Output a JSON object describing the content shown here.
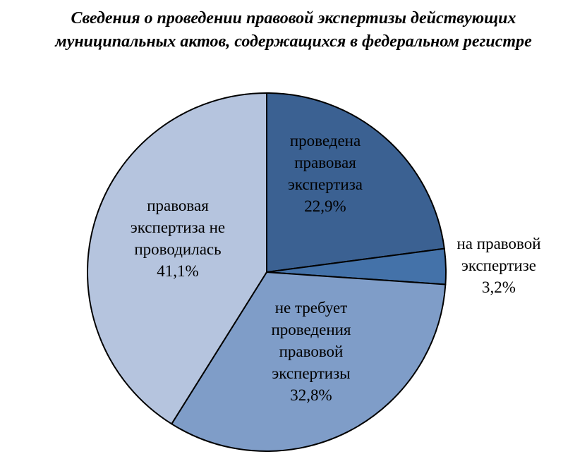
{
  "chart_data": {
    "type": "pie",
    "title_lines": [
      "Сведения о проведении правовой экспертизы действующих",
      "муниципальных актов, содержащихся в федеральном регистре"
    ],
    "slices": [
      {
        "label_lines": [
          "проведена",
          "правовая",
          "экспертиза"
        ],
        "value": 22.9,
        "value_label": "22,9%",
        "color": "#3b6192"
      },
      {
        "label_lines": [
          "на правовой",
          "экспертизе"
        ],
        "value": 3.2,
        "value_label": "3,2%",
        "color": "#4472a9"
      },
      {
        "label_lines": [
          "не требует",
          "проведения",
          "правовой",
          "экспертизы"
        ],
        "value": 32.8,
        "value_label": "32,8%",
        "color": "#7f9dc8"
      },
      {
        "label_lines": [
          "правовая",
          "экспертиза не",
          "проводилась"
        ],
        "value": 41.1,
        "value_label": "41,1%",
        "color": "#b5c4de"
      }
    ],
    "start": "12 o'clock",
    "direction": "clockwise",
    "legend": "none"
  }
}
